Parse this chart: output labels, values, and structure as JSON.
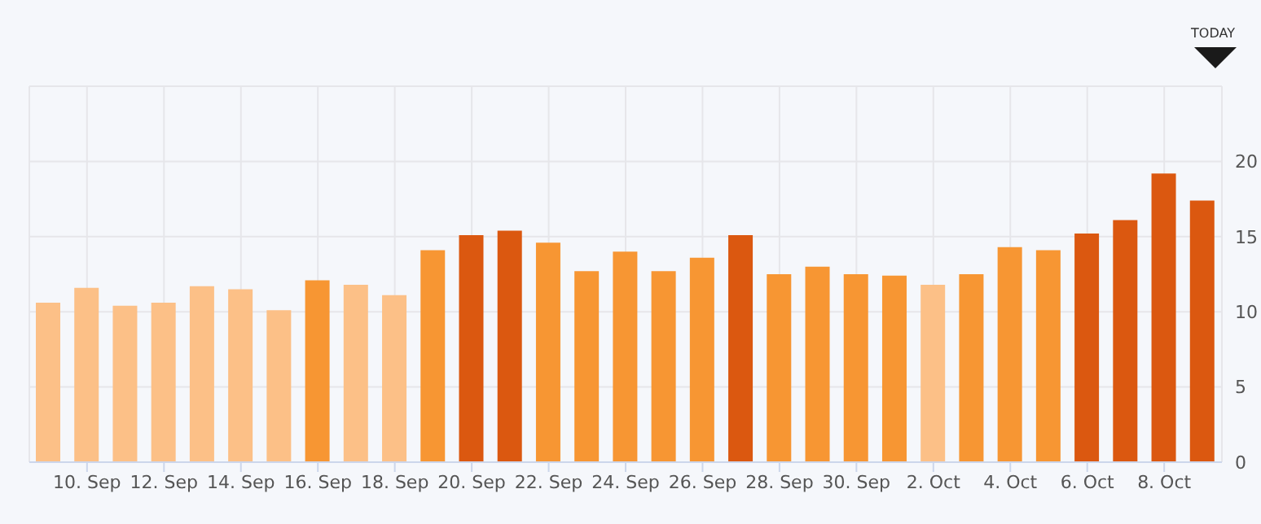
{
  "chart_data": {
    "type": "bar",
    "categories": [
      null,
      "10. Sep",
      null,
      "12. Sep",
      null,
      "14. Sep",
      null,
      "16. Sep",
      null,
      "18. Sep",
      null,
      "20. Sep",
      null,
      "22. Sep",
      null,
      "24. Sep",
      null,
      "26. Sep",
      null,
      "28. Sep",
      null,
      "30. Sep",
      null,
      "2. Oct",
      null,
      "4. Oct",
      null,
      "6. Oct",
      null,
      "8. Oct",
      null
    ],
    "values": [
      10.6,
      11.6,
      10.4,
      10.6,
      11.7,
      11.5,
      10.1,
      12.1,
      11.8,
      11.1,
      14.1,
      15.1,
      15.4,
      14.6,
      12.7,
      14.0,
      12.7,
      13.6,
      15.1,
      12.5,
      13.0,
      12.5,
      12.4,
      11.8,
      12.5,
      14.3,
      14.1,
      15.2,
      16.1,
      19.2,
      17.4
    ],
    "colors": [
      "#fcc087",
      "#fcc087",
      "#fcc087",
      "#fcc087",
      "#fcc087",
      "#fcc087",
      "#fcc087",
      "#f79633",
      "#fcc087",
      "#fcc087",
      "#f79633",
      "#db5810",
      "#db5810",
      "#f79633",
      "#f79633",
      "#f79633",
      "#f79633",
      "#f79633",
      "#db5810",
      "#f79633",
      "#f79633",
      "#f79633",
      "#f79633",
      "#fcc087",
      "#f79633",
      "#f79633",
      "#f79633",
      "#db5810",
      "#db5810",
      "#db5810",
      "#db5810"
    ],
    "ylim": [
      0,
      25
    ],
    "yticks": [
      0,
      5,
      10,
      15,
      20,
      {
        "value": 25,
        "label": null
      }
    ],
    "grid": true,
    "annotations": [
      "TODAY"
    ]
  }
}
